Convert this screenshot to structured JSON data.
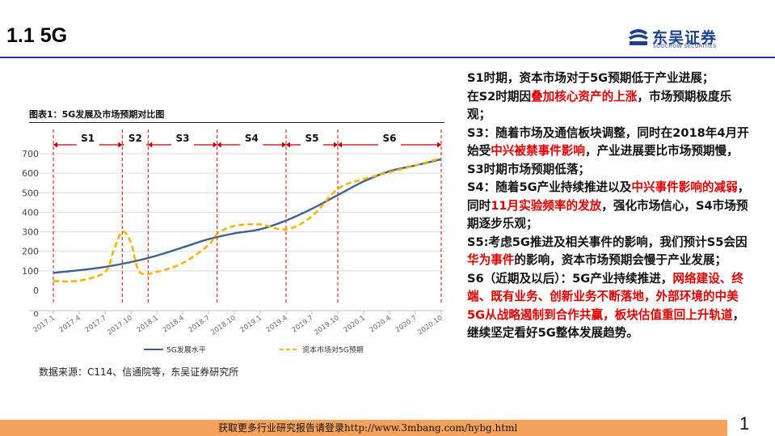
{
  "header": {
    "title": "1.1 5G",
    "logo_cn": "东吴证券",
    "logo_en": "SOOCHOW SECURITIES"
  },
  "chart_title": "图表1：5G发展及市场预期对比图",
  "chart_data": {
    "type": "line",
    "title": "图表1：5G发展及市场预期对比图",
    "x_ticks": [
      "2017.1",
      "2017.4",
      "2017.7",
      "2017.10",
      "2018.1",
      "2018.4",
      "2018.7",
      "2018.10",
      "2019.1",
      "2019.4",
      "2019.7",
      "2019.10",
      "2020.1",
      "2020.4",
      "2020.7",
      "2020.10"
    ],
    "y_ticks": [
      "700",
      "600",
      "500",
      "400",
      "300",
      "200",
      "100",
      "0"
    ],
    "y_extra_tick": "o",
    "ylim": [
      0,
      700
    ],
    "grid": true,
    "periods": [
      "S1",
      "S2",
      "S3",
      "S4",
      "S5",
      "S6"
    ],
    "period_bounds": [
      "2017.1",
      "2017.9",
      "2017.12",
      "2018.8",
      "2019.4",
      "2019.10",
      "2020.10"
    ],
    "series": [
      {
        "name": "5G发展水平",
        "color": "#3f5f8f",
        "style": "solid",
        "points": [
          [
            "2017.1",
            90
          ],
          [
            "2017.4",
            103
          ],
          [
            "2017.7",
            120
          ],
          [
            "2017.10",
            145
          ],
          [
            "2018.1",
            178
          ],
          [
            "2018.4",
            220
          ],
          [
            "2018.7",
            262
          ],
          [
            "2018.10",
            292
          ],
          [
            "2019.1",
            313
          ],
          [
            "2019.4",
            358
          ],
          [
            "2019.7",
            418
          ],
          [
            "2019.10",
            488
          ],
          [
            "2020.1",
            558
          ],
          [
            "2020.4",
            610
          ],
          [
            "2020.7",
            640
          ],
          [
            "2020.10",
            672
          ]
        ]
      },
      {
        "name": "资本市场对5G预期",
        "color": "#f5b400",
        "style": "dash",
        "points": [
          [
            "2017.1",
            48
          ],
          [
            "2017.4",
            50
          ],
          [
            "2017.7",
            95
          ],
          [
            "2017.8",
            205
          ],
          [
            "2017.9",
            300
          ],
          [
            "2017.10",
            245
          ],
          [
            "2017.11",
            95
          ],
          [
            "2018.1",
            95
          ],
          [
            "2018.4",
            140
          ],
          [
            "2018.7",
            232
          ],
          [
            "2018.8",
            290
          ],
          [
            "2018.10",
            330
          ],
          [
            "2019.1",
            338
          ],
          [
            "2019.4",
            312
          ],
          [
            "2019.7",
            380
          ],
          [
            "2019.10",
            520
          ],
          [
            "2020.1",
            570
          ],
          [
            "2020.4",
            605
          ],
          [
            "2020.7",
            640
          ],
          [
            "2020.10",
            678
          ]
        ]
      }
    ]
  },
  "source_text": "数据来源：C114、信通院等，东吴证券研究所",
  "commentary": [
    {
      "parts": [
        {
          "text": "S1时期，资本市场对于5G预期低于产业进展；",
          "hl": false
        }
      ]
    },
    {
      "parts": [
        {
          "text": "在S2时期因",
          "hl": false
        },
        {
          "text": "叠加核心资产的上涨",
          "hl": true
        },
        {
          "text": "，市场预期极度乐观；",
          "hl": false
        }
      ]
    },
    {
      "parts": [
        {
          "text": "S3：随着市场及通信板块调整，同时在2018年4月开始受",
          "hl": false
        },
        {
          "text": "中兴被禁事件影响",
          "hl": true
        },
        {
          "text": "，产业进展要比市场预期慢，S3时期市场预期低落；",
          "hl": false
        }
      ]
    },
    {
      "parts": [
        {
          "text": "S4：随着5G产业持续推进以及",
          "hl": false
        },
        {
          "text": "中兴事件影响的减弱",
          "hl": true
        },
        {
          "text": "，同时",
          "hl": false
        },
        {
          "text": "11月实验频率的发放",
          "hl": true
        },
        {
          "text": "，强化市场信心，S4市场预期逐步乐观；",
          "hl": false
        }
      ]
    },
    {
      "parts": [
        {
          "text": "S5:考虑5G推进及相关事件的影响，我们预计S5会因",
          "hl": false
        },
        {
          "text": "华为事件",
          "hl": true
        },
        {
          "text": "的影响，资本市场预期会慢于产业发展；",
          "hl": false
        }
      ]
    },
    {
      "parts": [
        {
          "text": "S6（近期及以后）：5G产业持续推进，",
          "hl": false
        },
        {
          "text": "网络建设、终端、既有业务、创新业务不断落地，外部环境的中美5G从战略遏制到合作共赢，板块估值重回上升轨道",
          "hl": true
        },
        {
          "text": "，继续坚定看好5G整体发展趋势。",
          "hl": false
        }
      ]
    }
  ],
  "footer": {
    "text": "获取更多行业研究报告请登录http://www.3mbang.com/hybg.html",
    "page_number": "1",
    "bar_color": "#f5a25d"
  }
}
